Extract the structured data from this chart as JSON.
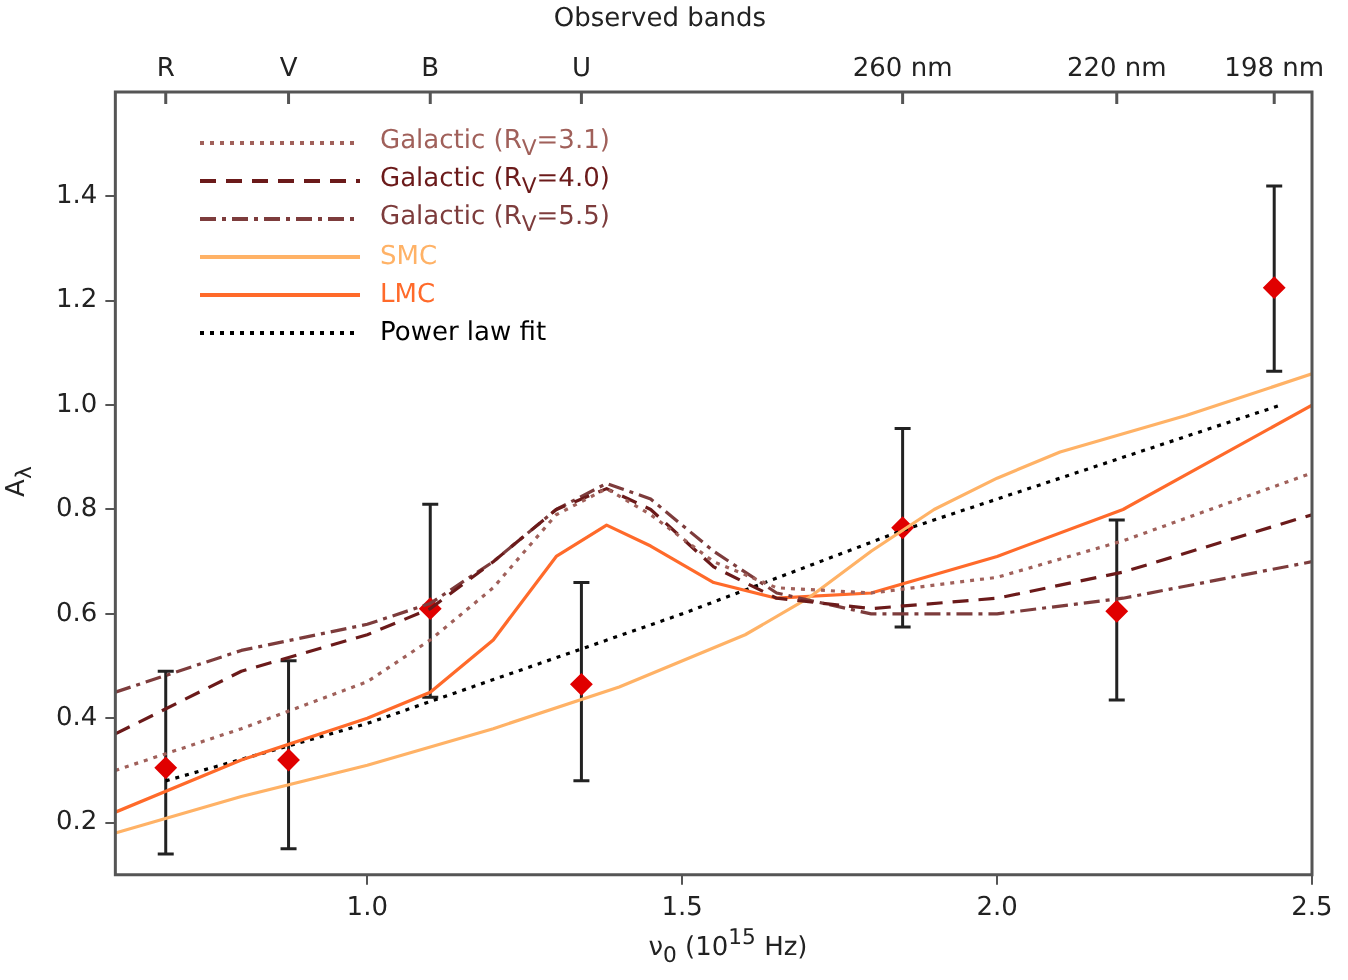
{
  "chart_data": {
    "type": "line",
    "xlabel": "ν$_{0}$ (10$^{15}$ Hz)",
    "ylabel": "A$_{λ}$",
    "x2label": "Observed bands",
    "xlim": [
      0.6,
      2.5
    ],
    "xticks": [
      {
        "value": 1,
        "label": "1.0"
      },
      1.5,
      {
        "value": 2,
        "label": "2.0"
      },
      2.5
    ],
    "ylim": [
      0.1,
      1.6
    ],
    "yticks": [
      0.2,
      0.4,
      0.6,
      0.8,
      {
        "value": 1,
        "label": "1.0"
      },
      1.2,
      1.4
    ],
    "annotations": [
      {
        "text": "R",
        "x": 0.68
      },
      {
        "text": "V",
        "x": 0.875
      },
      {
        "text": "B",
        "x": 1.1
      },
      {
        "text": "U",
        "x": 1.34
      },
      {
        "text": "260 nm",
        "x": 1.85
      },
      {
        "text": "220 nm",
        "x": 2.19
      },
      {
        "text": "198 nm",
        "x": 2.44
      }
    ],
    "legend": "top left",
    "series": [
      {
        "name": "Galactic (R$_{V}$=3.1)",
        "line_style": "dotted",
        "color": "#a0605a",
        "x": [
          0.6,
          0.8,
          1.0,
          1.1,
          1.2,
          1.3,
          1.38,
          1.45,
          1.55,
          1.65,
          1.8,
          2.0,
          2.2,
          2.5
        ],
        "values": [
          0.3,
          0.38,
          0.47,
          0.55,
          0.65,
          0.79,
          0.84,
          0.79,
          0.7,
          0.65,
          0.64,
          0.67,
          0.74,
          0.87
        ]
      },
      {
        "name": "Galactic (R$_{V}$=4.0)",
        "line_style": "dashed",
        "color": "#6b1a1a",
        "x": [
          0.6,
          0.8,
          1.0,
          1.1,
          1.2,
          1.3,
          1.38,
          1.45,
          1.55,
          1.65,
          1.8,
          2.0,
          2.2,
          2.5
        ],
        "values": [
          0.37,
          0.49,
          0.56,
          0.61,
          0.7,
          0.8,
          0.84,
          0.8,
          0.69,
          0.63,
          0.61,
          0.63,
          0.68,
          0.79
        ]
      },
      {
        "name": "Galactic (R$_{V}$=5.5)",
        "line_style": "dashdot",
        "color": "#7d3c3c",
        "x": [
          0.6,
          0.8,
          1.0,
          1.1,
          1.2,
          1.3,
          1.38,
          1.45,
          1.55,
          1.65,
          1.8,
          2.0,
          2.2,
          2.5
        ],
        "values": [
          0.45,
          0.53,
          0.58,
          0.62,
          0.7,
          0.8,
          0.85,
          0.82,
          0.72,
          0.64,
          0.6,
          0.6,
          0.63,
          0.7
        ]
      },
      {
        "name": "SMC",
        "line_style": "solid",
        "color": "#ffb266",
        "x": [
          0.6,
          0.8,
          1.0,
          1.2,
          1.4,
          1.6,
          1.7,
          1.8,
          1.9,
          2.0,
          2.1,
          2.3,
          2.5
        ],
        "values": [
          0.18,
          0.25,
          0.31,
          0.38,
          0.46,
          0.56,
          0.63,
          0.72,
          0.8,
          0.86,
          0.91,
          0.98,
          1.06
        ]
      },
      {
        "name": "LMC",
        "line_style": "solid",
        "color": "#ff6a2a",
        "x": [
          0.6,
          0.8,
          1.0,
          1.1,
          1.2,
          1.3,
          1.38,
          1.45,
          1.55,
          1.65,
          1.8,
          2.0,
          2.2,
          2.5
        ],
        "values": [
          0.22,
          0.32,
          0.4,
          0.45,
          0.55,
          0.71,
          0.77,
          0.73,
          0.66,
          0.63,
          0.64,
          0.71,
          0.8,
          1.0
        ]
      },
      {
        "name": "Power law fit",
        "line_style": "dotted",
        "color": "#000000",
        "x": [
          0.68,
          1.0,
          1.5,
          1.85,
          2.2,
          2.45
        ],
        "values": [
          0.28,
          0.39,
          0.6,
          0.76,
          0.9,
          1.0
        ]
      },
      {
        "type": "scatter",
        "marker": "diamond",
        "color": "#e00000",
        "x": [
          0.68,
          0.875,
          1.1,
          1.34,
          1.85,
          2.19,
          2.44
        ],
        "values": [
          0.305,
          0.32,
          0.61,
          0.465,
          0.765,
          0.605,
          1.225
        ],
        "errors": [
          [
            0.14,
            0.49
          ],
          [
            0.15,
            0.51
          ],
          [
            0.44,
            0.81
          ],
          [
            0.28,
            0.66
          ],
          [
            0.575,
            0.955
          ],
          [
            0.435,
            0.78
          ],
          [
            1.065,
            1.42
          ]
        ]
      }
    ]
  }
}
